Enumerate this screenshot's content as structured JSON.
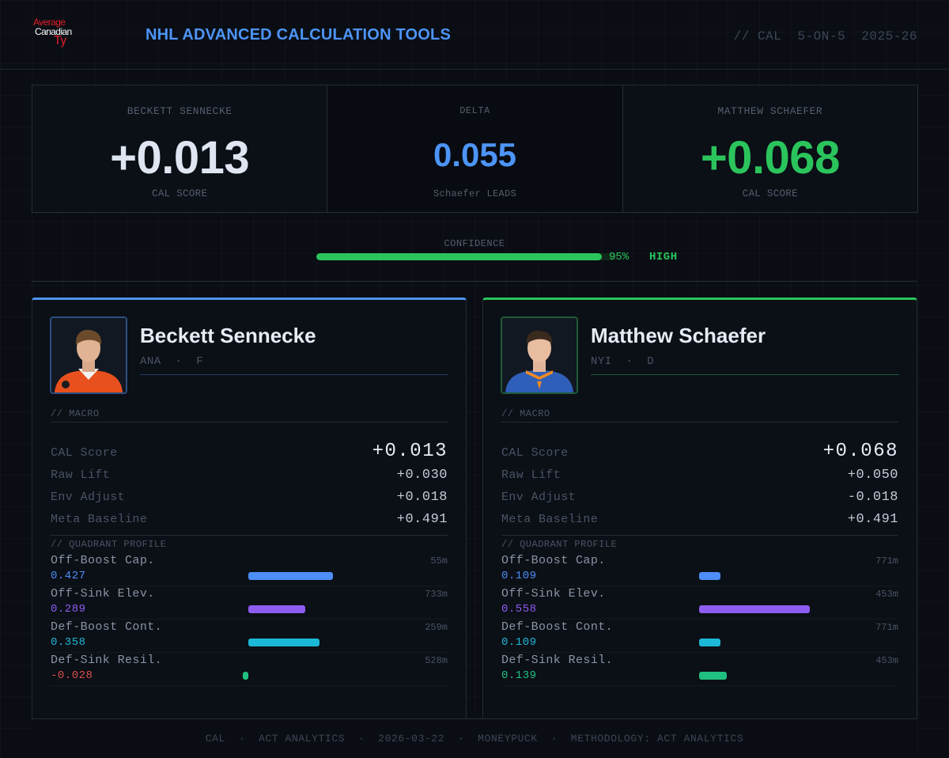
{
  "header": {
    "logo": {
      "line1": "Average",
      "line2": "Canadian",
      "line3": "Ty"
    },
    "title": "NHL ADVANCED CALCULATION TOOLS",
    "meta": "// CAL  5-ON-5  2025-26"
  },
  "scores": {
    "left": {
      "name": "BECKETT SENNECKE",
      "value": "+0.013",
      "sub": "CAL SCORE",
      "color": "#dfe6f2"
    },
    "delta": {
      "name": "DELTA",
      "value": "0.055",
      "sub": "Schaefer LEADS",
      "color": "#4d94f7"
    },
    "right": {
      "name": "MATTHEW SCHAEFER",
      "value": "+0.068",
      "sub": "CAL SCORE",
      "color": "#2bc45c"
    }
  },
  "confidence": {
    "label": "CONFIDENCE",
    "percent_text": "95%",
    "level": "HIGH",
    "fraction": 0.95
  },
  "players": [
    {
      "name": "Beckett Sennecke",
      "meta": "ANA  ·  F",
      "jersey_color": "#e8501e",
      "macro_label": "// MACRO",
      "stats": [
        {
          "label": "CAL Score",
          "value": "+0.013"
        },
        {
          "label": "Raw Lift",
          "value": "+0.030"
        },
        {
          "label": "Env Adjust",
          "value": "+0.018"
        },
        {
          "label": "Meta Baseline",
          "value": "+0.491"
        }
      ],
      "quadrant_label": "// QUADRANT PROFILE",
      "quadrants": [
        {
          "name": "Off-Boost Cap.",
          "value": "0.427",
          "num": 0.427,
          "minutes": "55m",
          "color": "#4d8ef7",
          "value_color": "#4d8ef7"
        },
        {
          "name": "Off-Sink Elev.",
          "value": "0.289",
          "num": 0.289,
          "minutes": "733m",
          "color": "#8d5cf0",
          "value_color": "#8d5cf0"
        },
        {
          "name": "Def-Boost Cont.",
          "value": "0.358",
          "num": 0.358,
          "minutes": "259m",
          "color": "#1cb8d8",
          "value_color": "#1cb8d8"
        },
        {
          "name": "Def-Sink Resil.",
          "value": "-0.028",
          "num": -0.028,
          "minutes": "528m",
          "color": "#20c080",
          "value_color": "#d8504a"
        }
      ]
    },
    {
      "name": "Matthew Schaefer",
      "meta": "NYI  ·  D",
      "jersey_color": "#2f5fb8",
      "macro_label": "// MACRO",
      "stats": [
        {
          "label": "CAL Score",
          "value": "+0.068"
        },
        {
          "label": "Raw Lift",
          "value": "+0.050"
        },
        {
          "label": "Env Adjust",
          "value": "-0.018"
        },
        {
          "label": "Meta Baseline",
          "value": "+0.491"
        }
      ],
      "quadrant_label": "// QUADRANT PROFILE",
      "quadrants": [
        {
          "name": "Off-Boost Cap.",
          "value": "0.109",
          "num": 0.109,
          "minutes": "771m",
          "color": "#4d8ef7",
          "value_color": "#4d8ef7"
        },
        {
          "name": "Off-Sink Elev.",
          "value": "0.558",
          "num": 0.558,
          "minutes": "453m",
          "color": "#8d5cf0",
          "value_color": "#8d5cf0"
        },
        {
          "name": "Def-Boost Cont.",
          "value": "0.109",
          "num": 0.109,
          "minutes": "771m",
          "color": "#1cb8d8",
          "value_color": "#1cb8d8"
        },
        {
          "name": "Def-Sink Resil.",
          "value": "0.139",
          "num": 0.139,
          "minutes": "453m",
          "color": "#20c080",
          "value_color": "#20c080"
        }
      ]
    }
  ],
  "footer": "CAL  ·  ACT ANALYTICS  ·  2026-03-22  ·  MONEYPUCK  ·  METHODOLOGY: ACT ANALYTICS"
}
